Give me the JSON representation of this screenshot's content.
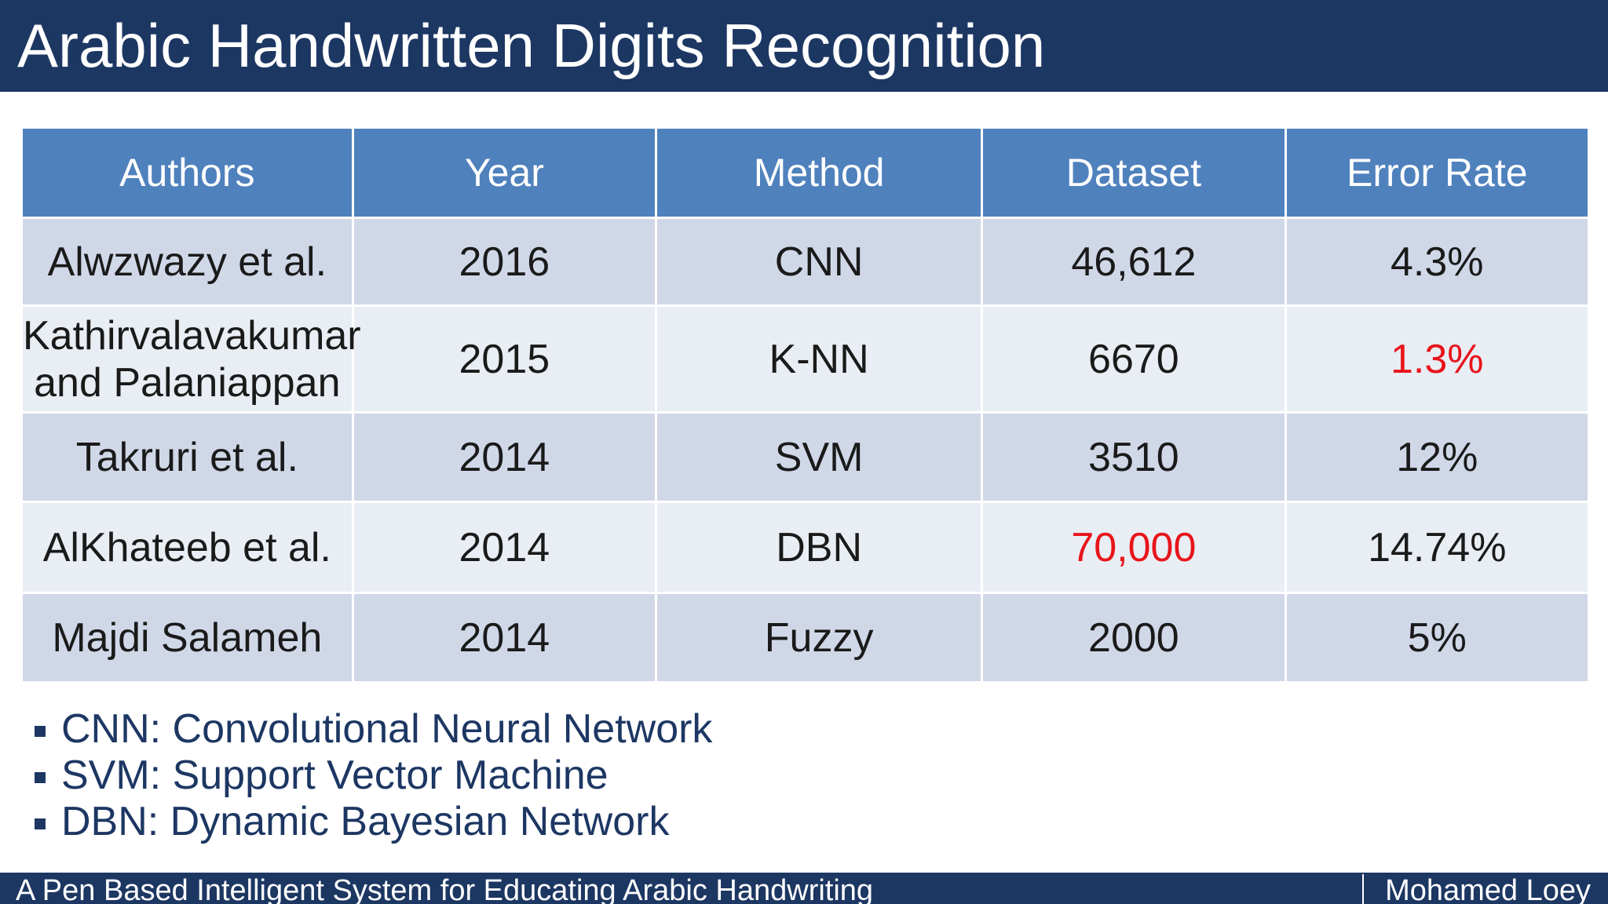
{
  "title": "Arabic Handwritten Digits Recognition",
  "table": {
    "headers": [
      "Authors",
      "Year",
      "Method",
      "Dataset",
      "Error Rate"
    ],
    "rows": [
      {
        "authors": "Alwzwazy et al.",
        "year": "2016",
        "method": "CNN",
        "dataset": "46,612",
        "error_rate": "4.3%"
      },
      {
        "authors_line1": "Kathirvalavakumar",
        "authors_line2": "and Palaniappan",
        "year": "2015",
        "method": "K-NN",
        "dataset": "6670",
        "error_rate": "1.3%"
      },
      {
        "authors": "Takruri et al.",
        "year": "2014",
        "method": "SVM",
        "dataset": "3510",
        "error_rate": "12%"
      },
      {
        "authors": "AlKhateeb et al.",
        "year": "2014",
        "method": "DBN",
        "dataset": "70,000",
        "error_rate": "14.74%"
      },
      {
        "authors": "Majdi Salameh",
        "year": "2014",
        "method": "Fuzzy",
        "dataset": "2000",
        "error_rate": "5%"
      }
    ],
    "highlight_color": "#e8141b"
  },
  "notes": [
    "CNN: Convolutional Neural Network",
    "SVM: Support Vector Machine",
    "DBN: Dynamic Bayesian Network"
  ],
  "footer": {
    "left": "A Pen Based Intelligent System for Educating Arabic Handwriting",
    "right": "Mohamed Loey"
  },
  "colors": {
    "title_bar": "#1d3763",
    "header_fill": "#4f81bd",
    "row_dark": "#d0d8e8",
    "row_light": "#e9edf4"
  }
}
